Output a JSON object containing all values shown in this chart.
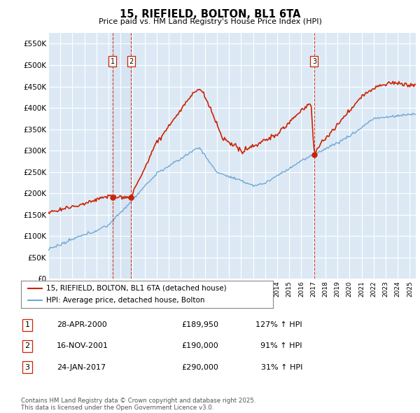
{
  "title": "15, RIEFIELD, BOLTON, BL1 6TA",
  "subtitle": "Price paid vs. HM Land Registry's House Price Index (HPI)",
  "xlim_start": 1995.0,
  "xlim_end": 2025.5,
  "ylim_min": 0,
  "ylim_max": 575000,
  "yticks": [
    0,
    50000,
    100000,
    150000,
    200000,
    250000,
    300000,
    350000,
    400000,
    450000,
    500000,
    550000
  ],
  "ytick_labels": [
    "£0",
    "£50K",
    "£100K",
    "£150K",
    "£200K",
    "£250K",
    "£300K",
    "£350K",
    "£400K",
    "£450K",
    "£500K",
    "£550K"
  ],
  "legend_line1": "15, RIEFIELD, BOLTON, BL1 6TA (detached house)",
  "legend_line2": "HPI: Average price, detached house, Bolton",
  "sale1_label": "1",
  "sale1_date": "28-APR-2000",
  "sale1_price": "£189,950",
  "sale1_hpi": "127% ↑ HPI",
  "sale1_x": 2000.33,
  "sale1_y": 189950,
  "sale2_label": "2",
  "sale2_date": "16-NOV-2001",
  "sale2_price": "£190,000",
  "sale2_hpi": "91% ↑ HPI",
  "sale2_x": 2001.88,
  "sale2_y": 190000,
  "sale3_label": "3",
  "sale3_date": "24-JAN-2017",
  "sale3_price": "£290,000",
  "sale3_hpi": "31% ↑ HPI",
  "sale3_x": 2017.07,
  "sale3_y": 290000,
  "hpi_color": "#6fa8d4",
  "price_color": "#cc2200",
  "plot_bg": "#dce9f5",
  "grid_color": "#ffffff",
  "footnote": "Contains HM Land Registry data © Crown copyright and database right 2025.\nThis data is licensed under the Open Government Licence v3.0."
}
